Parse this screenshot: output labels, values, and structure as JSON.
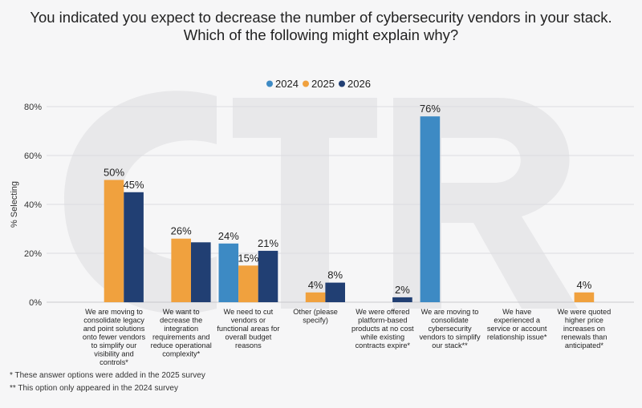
{
  "chart_data": {
    "type": "bar",
    "title_lines": [
      "You indicated you expect to decrease the number of cybersecurity vendors in your stack.",
      "Which of the following might explain why?"
    ],
    "ylabel": "% Selecting",
    "ylim": [
      0,
      80
    ],
    "yticks": [
      "0%",
      "20%",
      "40%",
      "60%",
      "80%"
    ],
    "grid": true,
    "legend_position": "top-center",
    "colors": {
      "2024": "#3d8ac4",
      "2025": "#f0a13e",
      "2026": "#213f73"
    },
    "series_names": [
      "2024",
      "2025",
      "2026"
    ],
    "categories": [
      {
        "label_lines": [
          "We are moving to",
          "consolidate legacy",
          "and point solutions",
          "onto fewer vendors",
          "to simplify our",
          "visibility and",
          "controls*"
        ],
        "values": {
          "2025": 50,
          "2026": 45
        },
        "labels": {
          "2025": "50%",
          "2026": "45%"
        }
      },
      {
        "label_lines": [
          "We want to",
          "decrease the",
          "integration",
          "requirements and",
          "reduce operational",
          "complexity*"
        ],
        "values": {
          "2025": 26,
          "2026": 24.5
        },
        "labels": {
          "2025": "26%"
        }
      },
      {
        "label_lines": [
          "We need to cut",
          "vendors or",
          "functional areas for",
          "overall budget",
          "reasons"
        ],
        "values": {
          "2024": 24,
          "2025": 15,
          "2026": 21
        },
        "labels": {
          "2024": "24%",
          "2025": "15%",
          "2026": "21%"
        }
      },
      {
        "label_lines": [
          "Other (please",
          "specify)"
        ],
        "values": {
          "2025": 4,
          "2026": 8
        },
        "labels": {
          "2025": "4%",
          "2026": "8%"
        }
      },
      {
        "label_lines": [
          "We were offered",
          "platform-based",
          "products at no cost",
          "while existing",
          "contracts expire*"
        ],
        "values": {
          "2026": 2
        },
        "labels": {
          "2026": "2%"
        }
      },
      {
        "label_lines": [
          "We are moving to",
          "consolidate",
          "cybersecurity",
          "vendors to simplify",
          "our stack**"
        ],
        "values": {
          "2024": 76
        },
        "labels": {
          "2024": "76%"
        }
      },
      {
        "label_lines": [
          "We have",
          "experienced a",
          "service or account",
          "relationship issue*"
        ],
        "values": {},
        "labels": {}
      },
      {
        "label_lines": [
          "We were quoted",
          "higher price",
          "increases on",
          "renewals than",
          "anticipated*"
        ],
        "values": {
          "2025": 4
        },
        "labels": {
          "2025": "4%"
        }
      }
    ]
  },
  "footnotes": [
    "* These answer options were added in the 2025 survey",
    "** This option only appeared in the 2024 survey"
  ]
}
